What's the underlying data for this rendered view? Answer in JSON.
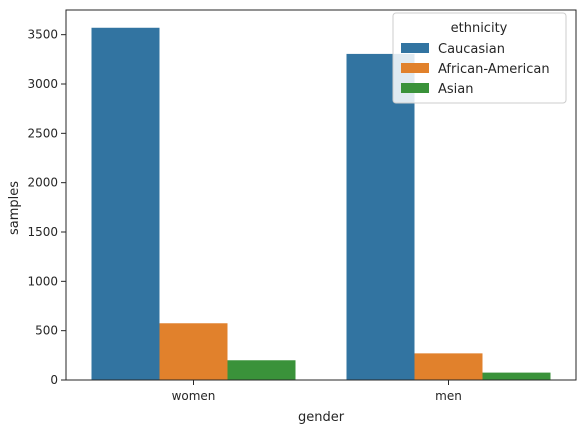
{
  "chart_data": {
    "type": "bar",
    "title": "",
    "xlabel": "gender",
    "ylabel": "samples",
    "categories": [
      "women",
      "men"
    ],
    "ylim": [
      0,
      3750
    ],
    "yticks": [
      0,
      500,
      1000,
      1500,
      2000,
      2500,
      3000,
      3500
    ],
    "grid": false,
    "legend": {
      "title": "ethnicity",
      "placement": "top-right"
    },
    "series": [
      {
        "name": "Caucasian",
        "color": "#3274a1",
        "values": [
          3570,
          3305
        ]
      },
      {
        "name": "African-American",
        "color": "#e1812c",
        "values": [
          575,
          270
        ]
      },
      {
        "name": "Asian",
        "color": "#3a923a",
        "values": [
          200,
          75
        ]
      }
    ]
  }
}
